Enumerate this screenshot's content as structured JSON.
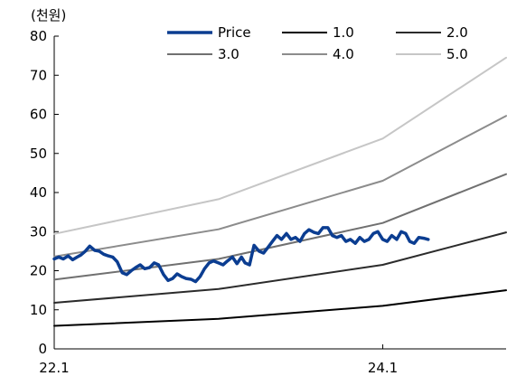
{
  "chart_data": {
    "type": "line",
    "unit_label": "(천원)",
    "ylim": [
      0,
      80
    ],
    "y_ticks": [
      "0",
      "10",
      "20",
      "30",
      "40",
      "50",
      "60",
      "70",
      "80"
    ],
    "x_range": [
      "2022-01",
      "2024-10"
    ],
    "x_ticks": [
      {
        "label": "22.1",
        "x": "2022-01"
      },
      {
        "label": "24.1",
        "x": "2024-01"
      }
    ],
    "grid": false,
    "legend": {
      "position": "top",
      "columns": 3
    },
    "series": [
      {
        "name": "Price",
        "color": "#0b3d91",
        "width": 3.5,
        "points": [
          [
            "2022-01-01",
            23.0
          ],
          [
            "2022-01-11",
            23.5
          ],
          [
            "2022-01-21",
            23.0
          ],
          [
            "2022-02-01",
            23.8
          ],
          [
            "2022-02-11",
            22.8
          ],
          [
            "2022-02-21",
            23.5
          ],
          [
            "2022-03-01",
            24.0
          ],
          [
            "2022-03-11",
            25.0
          ],
          [
            "2022-03-21",
            26.3
          ],
          [
            "2022-04-01",
            25.2
          ],
          [
            "2022-04-11",
            25.0
          ],
          [
            "2022-04-21",
            24.2
          ],
          [
            "2022-05-01",
            23.8
          ],
          [
            "2022-05-11",
            23.5
          ],
          [
            "2022-05-21",
            22.3
          ],
          [
            "2022-06-01",
            19.5
          ],
          [
            "2022-06-11",
            19.0
          ],
          [
            "2022-06-21",
            20.0
          ],
          [
            "2022-07-01",
            20.8
          ],
          [
            "2022-07-11",
            21.5
          ],
          [
            "2022-07-21",
            20.5
          ],
          [
            "2022-08-01",
            20.8
          ],
          [
            "2022-08-11",
            22.0
          ],
          [
            "2022-08-21",
            21.5
          ],
          [
            "2022-09-01",
            19.0
          ],
          [
            "2022-09-11",
            17.5
          ],
          [
            "2022-09-21",
            18.0
          ],
          [
            "2022-10-01",
            19.2
          ],
          [
            "2022-10-11",
            18.5
          ],
          [
            "2022-10-21",
            18.0
          ],
          [
            "2022-11-01",
            17.8
          ],
          [
            "2022-11-11",
            17.2
          ],
          [
            "2022-11-21",
            18.5
          ],
          [
            "2022-12-01",
            20.5
          ],
          [
            "2022-12-11",
            22.0
          ],
          [
            "2022-12-21",
            22.5
          ],
          [
            "2023-01-01",
            22.0
          ],
          [
            "2023-01-11",
            21.5
          ],
          [
            "2023-01-21",
            22.5
          ],
          [
            "2023-02-01",
            23.5
          ],
          [
            "2023-02-11",
            21.8
          ],
          [
            "2023-02-21",
            23.5
          ],
          [
            "2023-03-01",
            22.0
          ],
          [
            "2023-03-11",
            21.5
          ],
          [
            "2023-03-21",
            26.5
          ],
          [
            "2023-04-01",
            25.0
          ],
          [
            "2023-04-11",
            24.5
          ],
          [
            "2023-04-21",
            26.0
          ],
          [
            "2023-05-01",
            27.5
          ],
          [
            "2023-05-11",
            29.0
          ],
          [
            "2023-05-21",
            28.0
          ],
          [
            "2023-06-01",
            29.5
          ],
          [
            "2023-06-11",
            28.0
          ],
          [
            "2023-06-21",
            28.5
          ],
          [
            "2023-07-01",
            27.5
          ],
          [
            "2023-07-11",
            29.5
          ],
          [
            "2023-07-21",
            30.5
          ],
          [
            "2023-08-01",
            29.8
          ],
          [
            "2023-08-11",
            29.5
          ],
          [
            "2023-08-21",
            31.0
          ],
          [
            "2023-09-01",
            31.0
          ],
          [
            "2023-09-11",
            29.0
          ],
          [
            "2023-09-21",
            28.5
          ],
          [
            "2023-10-01",
            29.0
          ],
          [
            "2023-10-11",
            27.5
          ],
          [
            "2023-10-21",
            28.0
          ],
          [
            "2023-11-01",
            27.0
          ],
          [
            "2023-11-11",
            28.5
          ],
          [
            "2023-11-21",
            27.5
          ],
          [
            "2023-12-01",
            28.0
          ],
          [
            "2023-12-11",
            29.5
          ],
          [
            "2023-12-21",
            30.0
          ],
          [
            "2024-01-01",
            28.0
          ],
          [
            "2024-01-11",
            27.5
          ],
          [
            "2024-01-21",
            29.0
          ],
          [
            "2024-02-01",
            28.0
          ],
          [
            "2024-02-11",
            30.0
          ],
          [
            "2024-02-21",
            29.5
          ],
          [
            "2024-03-01",
            27.5
          ],
          [
            "2024-03-11",
            27.0
          ],
          [
            "2024-03-21",
            28.5
          ],
          [
            "2024-04-01",
            28.3
          ],
          [
            "2024-04-11",
            28.0
          ]
        ]
      },
      {
        "name": "1.0",
        "color": "#000000",
        "width": 2,
        "points": [
          [
            "2022-01-01",
            5.9
          ],
          [
            "2023-01-01",
            7.7
          ],
          [
            "2024-01-01",
            11.0
          ],
          [
            "2024-10-01",
            15.0
          ]
        ]
      },
      {
        "name": "2.0",
        "color": "#2b2b2b",
        "width": 2,
        "points": [
          [
            "2022-01-01",
            11.8
          ],
          [
            "2023-01-01",
            15.3
          ],
          [
            "2024-01-01",
            21.5
          ],
          [
            "2024-10-01",
            29.8
          ]
        ]
      },
      {
        "name": "3.0",
        "color": "#707070",
        "width": 2,
        "points": [
          [
            "2022-01-01",
            17.7
          ],
          [
            "2023-01-01",
            23.0
          ],
          [
            "2024-01-01",
            32.2
          ],
          [
            "2024-10-01",
            44.7
          ]
        ]
      },
      {
        "name": "4.0",
        "color": "#8c8c8c",
        "width": 2,
        "points": [
          [
            "2022-01-01",
            23.6
          ],
          [
            "2023-01-01",
            30.6
          ],
          [
            "2024-01-01",
            43.0
          ],
          [
            "2024-10-01",
            59.6
          ]
        ]
      },
      {
        "name": "5.0",
        "color": "#c6c6c6",
        "width": 2,
        "points": [
          [
            "2022-01-01",
            29.4
          ],
          [
            "2023-01-01",
            38.3
          ],
          [
            "2024-01-01",
            53.8
          ],
          [
            "2024-10-01",
            74.5
          ]
        ]
      }
    ]
  }
}
